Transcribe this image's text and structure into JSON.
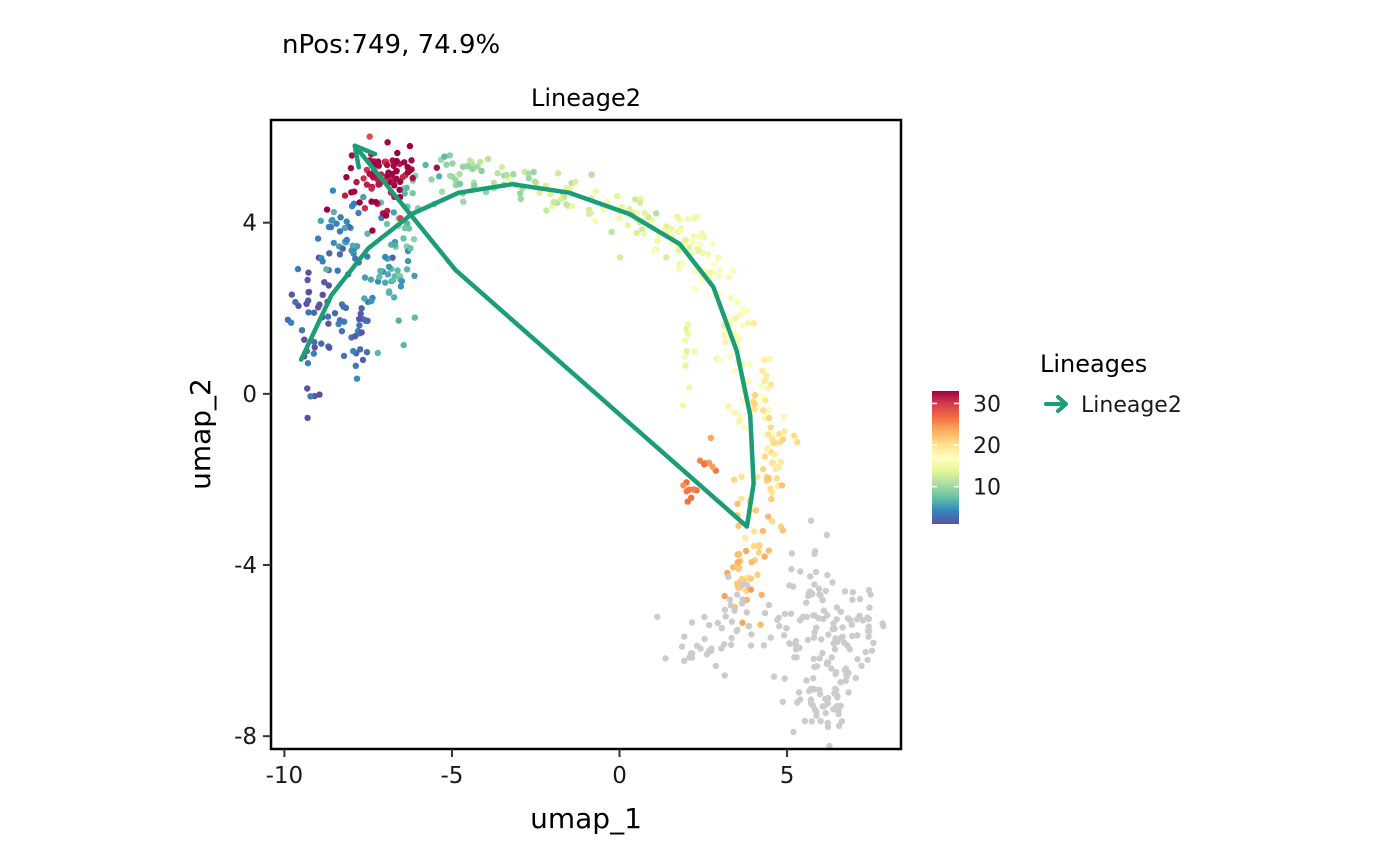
{
  "chart_data": {
    "type": "scatter",
    "subtitle": "nPos:749, 74.9%",
    "title": "Lineage2",
    "xlabel": "umap_1",
    "ylabel": "umap_2",
    "xlim": [
      -10.4,
      8.4
    ],
    "ylim": [
      -8.3,
      6.4
    ],
    "x_ticks": [
      -10,
      -5,
      0,
      5
    ],
    "y_ticks": [
      4,
      0,
      -4,
      -8
    ],
    "x_tick_labels": [
      "-10",
      "-5",
      "0",
      "5"
    ],
    "y_tick_labels": [
      "4",
      "0",
      "-4",
      "-8"
    ],
    "grid": false,
    "colorbar": {
      "title": "",
      "min": 1,
      "max": 33,
      "ticks": [
        10,
        20,
        30
      ],
      "tick_labels": [
        "10",
        "20",
        "30"
      ],
      "palette": [
        "#5e4fa2",
        "#3288bd",
        "#66c2a5",
        "#abdda4",
        "#e6f598",
        "#ffffbf",
        "#fee08b",
        "#fdae61",
        "#f46d43",
        "#d53e4f",
        "#9e0142"
      ]
    },
    "na_color": "#cccccc",
    "legend": {
      "title": "Lineages",
      "placement": "right",
      "entries": [
        {
          "label": "Lineage2",
          "color": "#1b9e77"
        }
      ]
    },
    "clusters": [
      {
        "x": -9.2,
        "y": 1.8,
        "sx": 0.35,
        "sy": 0.9,
        "n": 40,
        "value": 2
      },
      {
        "x": -8.3,
        "y": 3.5,
        "sx": 0.4,
        "sy": 0.5,
        "n": 40,
        "value": 4
      },
      {
        "x": -7.9,
        "y": 1.5,
        "sx": 0.35,
        "sy": 0.5,
        "n": 30,
        "value": 3
      },
      {
        "x": -6.8,
        "y": 2.8,
        "sx": 0.4,
        "sy": 0.8,
        "n": 45,
        "value": 6
      },
      {
        "x": -6.1,
        "y": 4.3,
        "sx": 0.35,
        "sy": 0.45,
        "n": 20,
        "value": 8
      },
      {
        "x": -7.2,
        "y": 5.0,
        "sx": 0.45,
        "sy": 0.45,
        "n": 60,
        "value": 32
      },
      {
        "x": -6.6,
        "y": 5.4,
        "sx": 0.35,
        "sy": 0.3,
        "n": 20,
        "value": 33
      },
      {
        "x": -4.8,
        "y": 5.1,
        "sx": 0.55,
        "sy": 0.25,
        "n": 30,
        "value": 10
      },
      {
        "x": -3.3,
        "y": 5.0,
        "sx": 0.6,
        "sy": 0.2,
        "n": 20,
        "value": 11
      },
      {
        "x": -1.5,
        "y": 4.7,
        "sx": 0.6,
        "sy": 0.22,
        "n": 25,
        "value": 13
      },
      {
        "x": 0.3,
        "y": 4.2,
        "sx": 0.5,
        "sy": 0.25,
        "n": 30,
        "value": 14
      },
      {
        "x": 1.5,
        "y": 3.7,
        "sx": 0.5,
        "sy": 0.3,
        "n": 30,
        "value": 15
      },
      {
        "x": 2.6,
        "y": 2.9,
        "sx": 0.4,
        "sy": 0.45,
        "n": 30,
        "value": 16
      },
      {
        "x": 3.4,
        "y": 1.7,
        "sx": 0.35,
        "sy": 0.55,
        "n": 30,
        "value": 17
      },
      {
        "x": 1.9,
        "y": 0.9,
        "sx": 0.25,
        "sy": 0.4,
        "n": 10,
        "value": 15
      },
      {
        "x": 4.0,
        "y": 0.3,
        "sx": 0.3,
        "sy": 0.5,
        "n": 30,
        "value": 18
      },
      {
        "x": 4.6,
        "y": -1.2,
        "sx": 0.3,
        "sy": 0.6,
        "n": 30,
        "value": 19
      },
      {
        "x": 4.2,
        "y": -2.8,
        "sx": 0.35,
        "sy": 0.6,
        "n": 35,
        "value": 21
      },
      {
        "x": 3.6,
        "y": -4.2,
        "sx": 0.3,
        "sy": 0.55,
        "n": 30,
        "value": 22
      },
      {
        "x": 2.6,
        "y": -1.6,
        "sx": 0.15,
        "sy": 0.25,
        "n": 8,
        "value": 25
      },
      {
        "x": 2.1,
        "y": -2.3,
        "sx": 0.12,
        "sy": 0.15,
        "n": 8,
        "value": 26
      },
      {
        "x": 2.7,
        "y": -5.8,
        "sx": 0.6,
        "sy": 0.35,
        "n": 30,
        "value": null
      },
      {
        "x": 3.5,
        "y": -5.0,
        "sx": 0.3,
        "sy": 0.5,
        "n": 15,
        "value": null
      },
      {
        "x": 5.7,
        "y": -4.8,
        "sx": 0.3,
        "sy": 0.7,
        "n": 40,
        "value": null
      },
      {
        "x": 6.5,
        "y": -6.0,
        "sx": 0.6,
        "sy": 0.8,
        "n": 60,
        "value": null
      },
      {
        "x": 6.0,
        "y": -7.1,
        "sx": 0.4,
        "sy": 0.4,
        "n": 40,
        "value": null
      },
      {
        "x": 7.1,
        "y": -5.3,
        "sx": 0.35,
        "sy": 0.4,
        "n": 20,
        "value": null
      },
      {
        "x": 4.8,
        "y": -5.6,
        "sx": 0.3,
        "sy": 0.4,
        "n": 15,
        "value": null
      }
    ],
    "lineage_curve": {
      "name": "Lineage2",
      "color": "#1b9e77",
      "x": [
        -9.5,
        -8.6,
        -7.5,
        -6.2,
        -4.8,
        -3.2,
        -1.5,
        0.3,
        1.8,
        2.8,
        3.5,
        3.9,
        4.0,
        3.8,
        -4.9,
        -7.9
      ],
      "y": [
        0.8,
        2.3,
        3.4,
        4.2,
        4.7,
        4.9,
        4.7,
        4.2,
        3.5,
        2.5,
        1.0,
        -0.5,
        -2.1,
        -3.1,
        2.9,
        5.8
      ]
    }
  }
}
